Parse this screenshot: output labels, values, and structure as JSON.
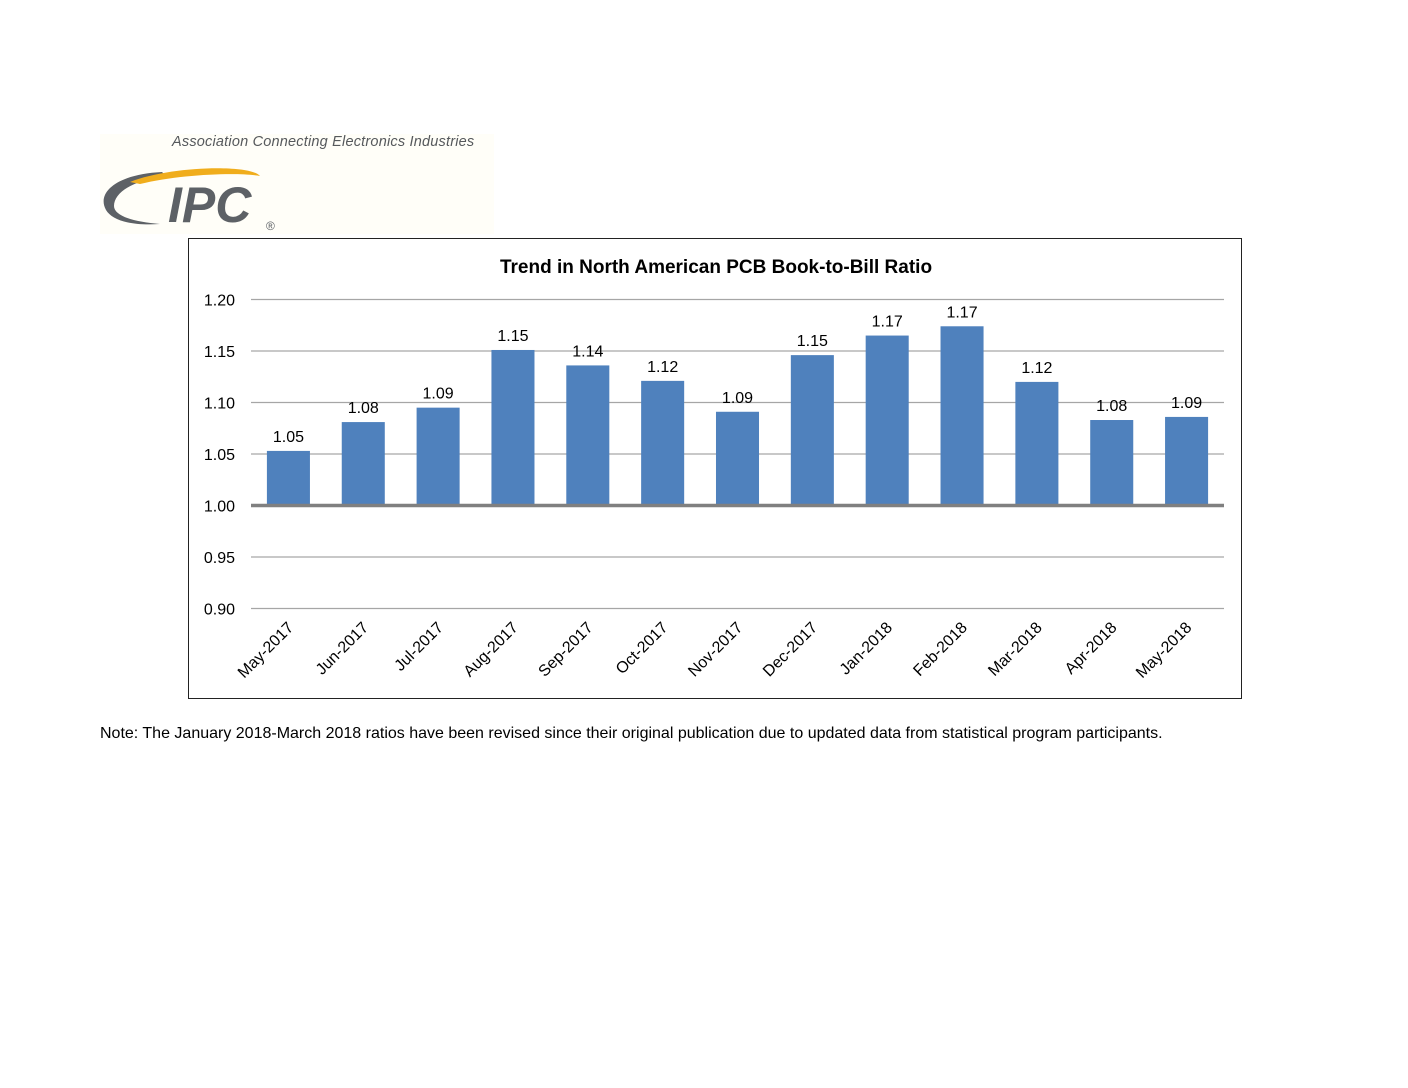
{
  "header": {
    "tagline": "Association Connecting Electronics Industries",
    "logo_text": "IPC",
    "registered_mark": "®",
    "colors": {
      "gray": "#5d6166",
      "gold": "#f0ad1c"
    }
  },
  "chart_data": {
    "type": "bar",
    "title": "Trend in North American PCB Book-to-Bill Ratio",
    "xlabel": "",
    "ylabel": "",
    "categories": [
      "May-2017",
      "Jun-2017",
      "Jul-2017",
      "Aug-2017",
      "Sep-2017",
      "Oct-2017",
      "Nov-2017",
      "Dec-2017",
      "Jan-2018",
      "Feb-2018",
      "Mar-2018",
      "Apr-2018",
      "May-2018"
    ],
    "values": [
      1.053,
      1.081,
      1.095,
      1.151,
      1.136,
      1.121,
      1.091,
      1.146,
      1.165,
      1.174,
      1.12,
      1.083,
      1.086
    ],
    "data_labels": [
      "1.05",
      "1.08",
      "1.09",
      "1.15",
      "1.14",
      "1.12",
      "1.09",
      "1.15",
      "1.17",
      "1.17",
      "1.12",
      "1.08",
      "1.09"
    ],
    "ylim": [
      0.9,
      1.2
    ],
    "yticks": [
      "0.90",
      "0.95",
      "1.00",
      "1.05",
      "1.10",
      "1.15",
      "1.20"
    ],
    "baseline": 1.0,
    "grid": true,
    "legend": "none",
    "bar_color": "#4f81bd"
  },
  "footer": {
    "note": "Note: The January 2018-March 2018 ratios have been revised since their original publication due to updated data from statistical program participants."
  }
}
